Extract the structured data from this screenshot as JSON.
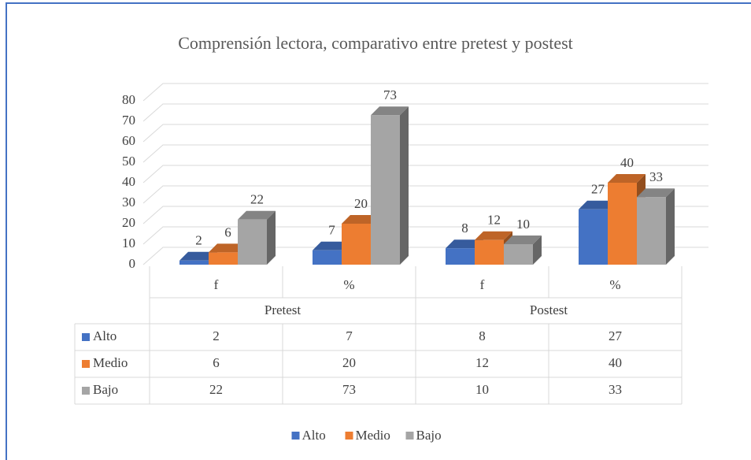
{
  "chart_data": {
    "type": "bar3d",
    "title": "Comprensión lectora, comparativo entre pretest y postest",
    "category_groups": [
      {
        "name": "Pretest",
        "categories": [
          "f",
          "%"
        ]
      },
      {
        "name": "Postest",
        "categories": [
          "f",
          "%"
        ]
      }
    ],
    "series": [
      {
        "name": "Alto",
        "color": "#4472c4",
        "values": [
          2,
          7,
          8,
          27
        ]
      },
      {
        "name": "Medio",
        "color": "#ed7d31",
        "values": [
          6,
          20,
          12,
          40
        ]
      },
      {
        "name": "Bajo",
        "color": "#a5a5a5",
        "values": [
          22,
          73,
          10,
          33
        ]
      }
    ],
    "ylim": [
      0,
      80
    ],
    "yticks": [
      0,
      10,
      20,
      30,
      40,
      50,
      60,
      70,
      80
    ],
    "grid": true,
    "data_table": true,
    "legend": "bottom"
  }
}
